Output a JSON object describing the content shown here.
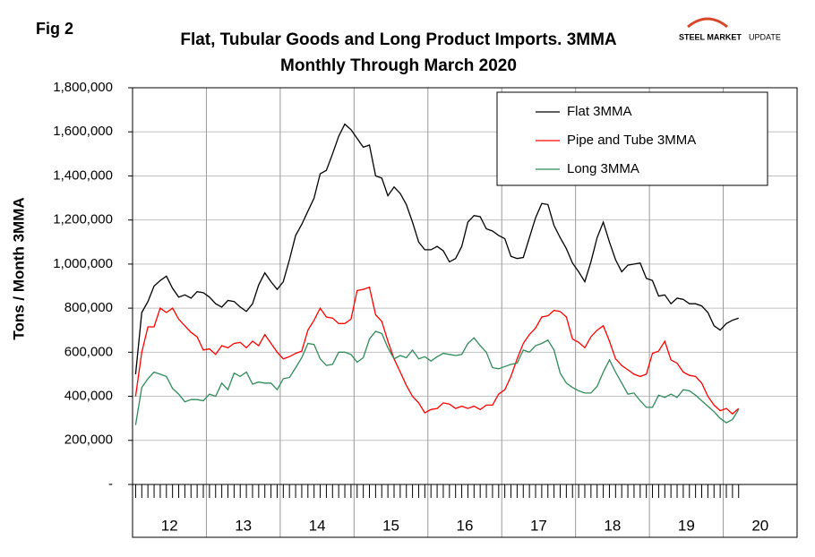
{
  "chart_data": {
    "type": "line",
    "fig_label": "Fig 2",
    "title": "Flat, Tubular Goods and Long Product Imports. 3MMA",
    "subtitle": "Monthly Through March 2020",
    "logo": {
      "bold": "STEEL MARKET",
      "light": "UPDATE"
    },
    "ylabel": "Tons / Month 3MMA",
    "year_labels": [
      "12",
      "13",
      "14",
      "15",
      "16",
      "17",
      "18",
      "19",
      "20"
    ],
    "ylim": [
      0,
      1800000
    ],
    "yticks": [
      {
        "value": 0,
        "label": "-"
      },
      {
        "value": 200000,
        "label": "200,000"
      },
      {
        "value": 400000,
        "label": "400,000"
      },
      {
        "value": 600000,
        "label": "600,000"
      },
      {
        "value": 800000,
        "label": "800,000"
      },
      {
        "value": 1000000,
        "label": "1,000,000"
      },
      {
        "value": 1200000,
        "label": "1,200,000"
      },
      {
        "value": 1400000,
        "label": "1,400,000"
      },
      {
        "value": 1600000,
        "label": "1,600,000"
      },
      {
        "value": 1800000,
        "label": "1,800,000"
      }
    ],
    "grid": true,
    "legend": "top-right",
    "series": [
      {
        "name": "Flat 3MMA",
        "color": "#000000",
        "values": [
          500000,
          780000,
          830000,
          900000,
          925000,
          945000,
          890000,
          850000,
          860000,
          845000,
          875000,
          870000,
          850000,
          820000,
          805000,
          835000,
          830000,
          805000,
          785000,
          820000,
          905000,
          960000,
          920000,
          885000,
          920000,
          1020000,
          1130000,
          1180000,
          1240000,
          1300000,
          1410000,
          1425000,
          1500000,
          1580000,
          1635000,
          1610000,
          1570000,
          1530000,
          1540000,
          1400000,
          1390000,
          1310000,
          1350000,
          1320000,
          1270000,
          1190000,
          1100000,
          1065000,
          1065000,
          1080000,
          1060000,
          1010000,
          1025000,
          1080000,
          1190000,
          1220000,
          1215000,
          1160000,
          1150000,
          1130000,
          1115000,
          1035000,
          1025000,
          1030000,
          1120000,
          1210000,
          1275000,
          1270000,
          1175000,
          1120000,
          1070000,
          1005000,
          965000,
          920000,
          1010000,
          1120000,
          1190000,
          1100000,
          1020000,
          965000,
          995000,
          1000000,
          1005000,
          935000,
          925000,
          855000,
          860000,
          820000,
          845000,
          840000,
          820000,
          820000,
          810000,
          780000,
          720000,
          700000,
          730000,
          745000,
          755000
        ]
      },
      {
        "name": "Pipe and Tube 3MMA",
        "color": "#ff0000",
        "values": [
          400000,
          600000,
          715000,
          715000,
          800000,
          780000,
          800000,
          750000,
          720000,
          690000,
          670000,
          610000,
          615000,
          590000,
          630000,
          620000,
          640000,
          645000,
          620000,
          650000,
          630000,
          680000,
          640000,
          600000,
          570000,
          580000,
          595000,
          605000,
          700000,
          745000,
          800000,
          760000,
          755000,
          730000,
          730000,
          750000,
          880000,
          885000,
          895000,
          770000,
          740000,
          650000,
          570000,
          510000,
          450000,
          400000,
          370000,
          325000,
          340000,
          345000,
          370000,
          365000,
          345000,
          355000,
          345000,
          355000,
          340000,
          360000,
          360000,
          410000,
          430000,
          490000,
          570000,
          640000,
          680000,
          710000,
          760000,
          765000,
          790000,
          785000,
          760000,
          660000,
          645000,
          620000,
          670000,
          700000,
          720000,
          650000,
          570000,
          540000,
          520000,
          500000,
          490000,
          500000,
          595000,
          605000,
          650000,
          565000,
          550000,
          510000,
          495000,
          490000,
          460000,
          400000,
          360000,
          335000,
          345000,
          320000,
          345000
        ]
      },
      {
        "name": "Long 3MMA",
        "color": "#2e8b57",
        "values": [
          270000,
          440000,
          480000,
          510000,
          500000,
          490000,
          435000,
          410000,
          375000,
          385000,
          385000,
          380000,
          410000,
          400000,
          460000,
          430000,
          505000,
          490000,
          510000,
          455000,
          465000,
          460000,
          460000,
          430000,
          480000,
          485000,
          530000,
          575000,
          640000,
          635000,
          570000,
          540000,
          545000,
          600000,
          600000,
          590000,
          555000,
          575000,
          660000,
          695000,
          685000,
          620000,
          570000,
          585000,
          575000,
          610000,
          570000,
          580000,
          560000,
          580000,
          595000,
          590000,
          585000,
          590000,
          640000,
          665000,
          630000,
          600000,
          530000,
          525000,
          535000,
          545000,
          550000,
          610000,
          600000,
          630000,
          640000,
          655000,
          610000,
          505000,
          460000,
          440000,
          425000,
          415000,
          415000,
          445000,
          510000,
          565000,
          510000,
          460000,
          410000,
          415000,
          380000,
          350000,
          350000,
          405000,
          395000,
          410000,
          395000,
          430000,
          425000,
          405000,
          380000,
          355000,
          330000,
          300000,
          280000,
          295000,
          340000
        ]
      }
    ]
  }
}
